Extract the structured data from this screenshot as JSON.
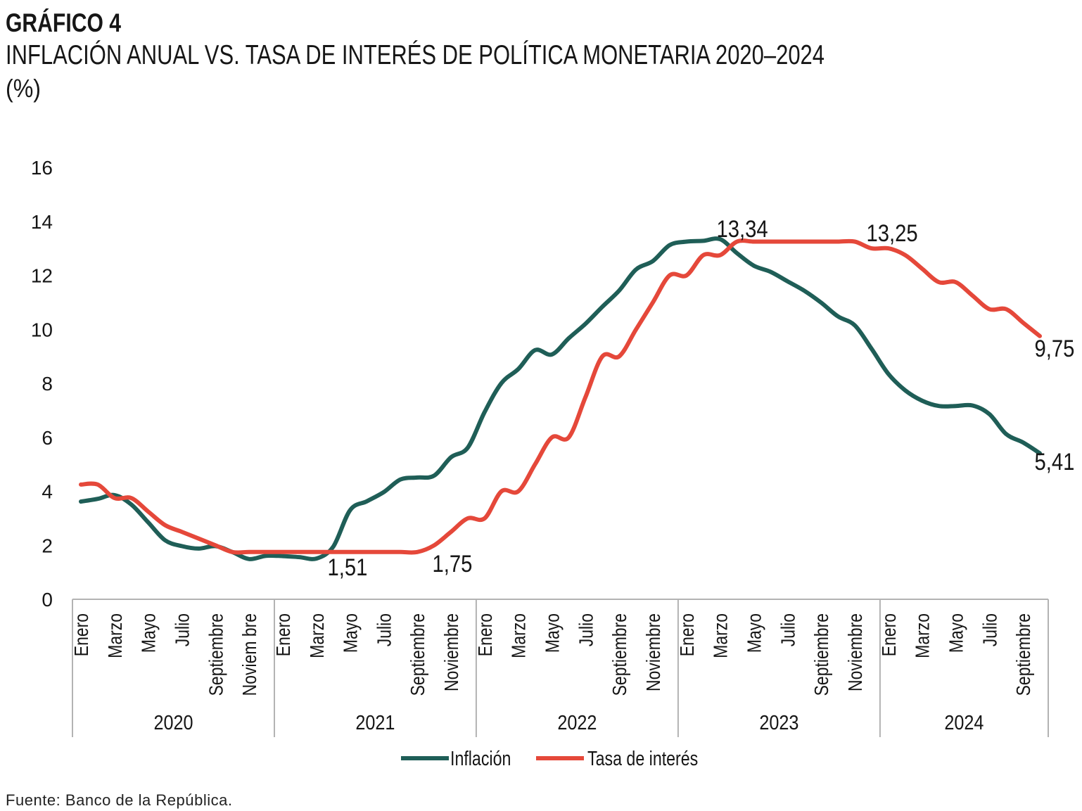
{
  "source": "Fuente: Banco de la República.",
  "colors": {
    "axis": "#b3b3b3",
    "text": "#161616"
  },
  "chart_data": {
    "type": "line",
    "figure_label": "GRÁFICO 4",
    "title": "INFLACIÓN ANUAL VS. TASA DE INTERÉS DE POLÍTICA MONETARIA 2020–2024",
    "ylabel": "(%)",
    "xlabel": "",
    "ylim": [
      0,
      16
    ],
    "yticks": [
      "0",
      "2",
      "4",
      "6",
      "8",
      "10",
      "12",
      "14",
      "16"
    ],
    "grid": false,
    "legend": {
      "position": "bottom"
    },
    "years": [
      {
        "label": "2020",
        "months": 12,
        "tick_labels": [
          "Enero",
          "Marzo",
          "Mayo",
          "Julio",
          "Septiembre",
          "Noviem bre"
        ]
      },
      {
        "label": "2021",
        "months": 12,
        "tick_labels": [
          "Enero",
          "Marzo",
          "Mayo",
          "Julio",
          "Septiembre",
          "Noviembre"
        ]
      },
      {
        "label": "2022",
        "months": 12,
        "tick_labels": [
          "Enero",
          "Marzo",
          "Mayo",
          "Julio",
          "Septiembre",
          "Noviembre"
        ]
      },
      {
        "label": "2023",
        "months": 12,
        "tick_labels": [
          "Enero",
          "Marzo",
          "Mayo",
          "Julio",
          "Septiembre",
          "Noviembre"
        ]
      },
      {
        "label": "2024",
        "months": 10,
        "tick_labels": [
          "Enero",
          "Marzo",
          "Mayo",
          "Julio",
          "Septiembre"
        ]
      }
    ],
    "series": [
      {
        "name": "Inflación",
        "color": "#1f5e57",
        "values": [
          3.62,
          3.72,
          3.86,
          3.51,
          2.85,
          2.19,
          1.97,
          1.88,
          1.97,
          1.75,
          1.49,
          1.61,
          1.6,
          1.56,
          1.51,
          1.95,
          3.3,
          3.63,
          3.97,
          4.44,
          4.51,
          4.58,
          5.26,
          5.62,
          6.94,
          8.01,
          8.53,
          9.23,
          9.07,
          9.67,
          10.21,
          10.84,
          11.44,
          12.22,
          12.53,
          13.12,
          13.25,
          13.28,
          13.34,
          12.82,
          12.36,
          12.13,
          11.78,
          11.43,
          10.99,
          10.48,
          10.15,
          9.28,
          8.35,
          7.74,
          7.36,
          7.16,
          7.16,
          7.18,
          6.86,
          6.12,
          5.81,
          5.41
        ]
      },
      {
        "name": "Tasa de interés",
        "color": "#e5483a",
        "values": [
          4.25,
          4.25,
          3.75,
          3.75,
          3.25,
          2.75,
          2.5,
          2.25,
          2.0,
          1.75,
          1.75,
          1.75,
          1.75,
          1.75,
          1.75,
          1.75,
          1.75,
          1.75,
          1.75,
          1.75,
          1.75,
          2.0,
          2.5,
          3.0,
          3.0,
          4.0,
          4.0,
          5.0,
          6.0,
          6.0,
          7.5,
          9.0,
          9.0,
          10.0,
          11.0,
          12.0,
          12.0,
          12.75,
          12.75,
          13.25,
          13.25,
          13.25,
          13.25,
          13.25,
          13.25,
          13.25,
          13.25,
          13.0,
          13.0,
          12.75,
          12.25,
          11.75,
          11.75,
          11.25,
          10.75,
          10.75,
          10.25,
          9.75
        ]
      }
    ],
    "data_labels": [
      {
        "series_index": 0,
        "month_index": 14,
        "value": 1.51,
        "text": "1,51"
      },
      {
        "series_index": 1,
        "month_index": 20,
        "value": 1.75,
        "text": "1,75"
      },
      {
        "series_index": 0,
        "month_index": 38,
        "value": 13.34,
        "text": "13,34"
      },
      {
        "series_index": 1,
        "month_index": 46,
        "value": 13.25,
        "text": "13,25"
      },
      {
        "series_index": 1,
        "month_index": 57,
        "value": 9.75,
        "text": "9,75"
      },
      {
        "series_index": 0,
        "month_index": 57,
        "value": 5.41,
        "text": "5,41"
      }
    ]
  }
}
